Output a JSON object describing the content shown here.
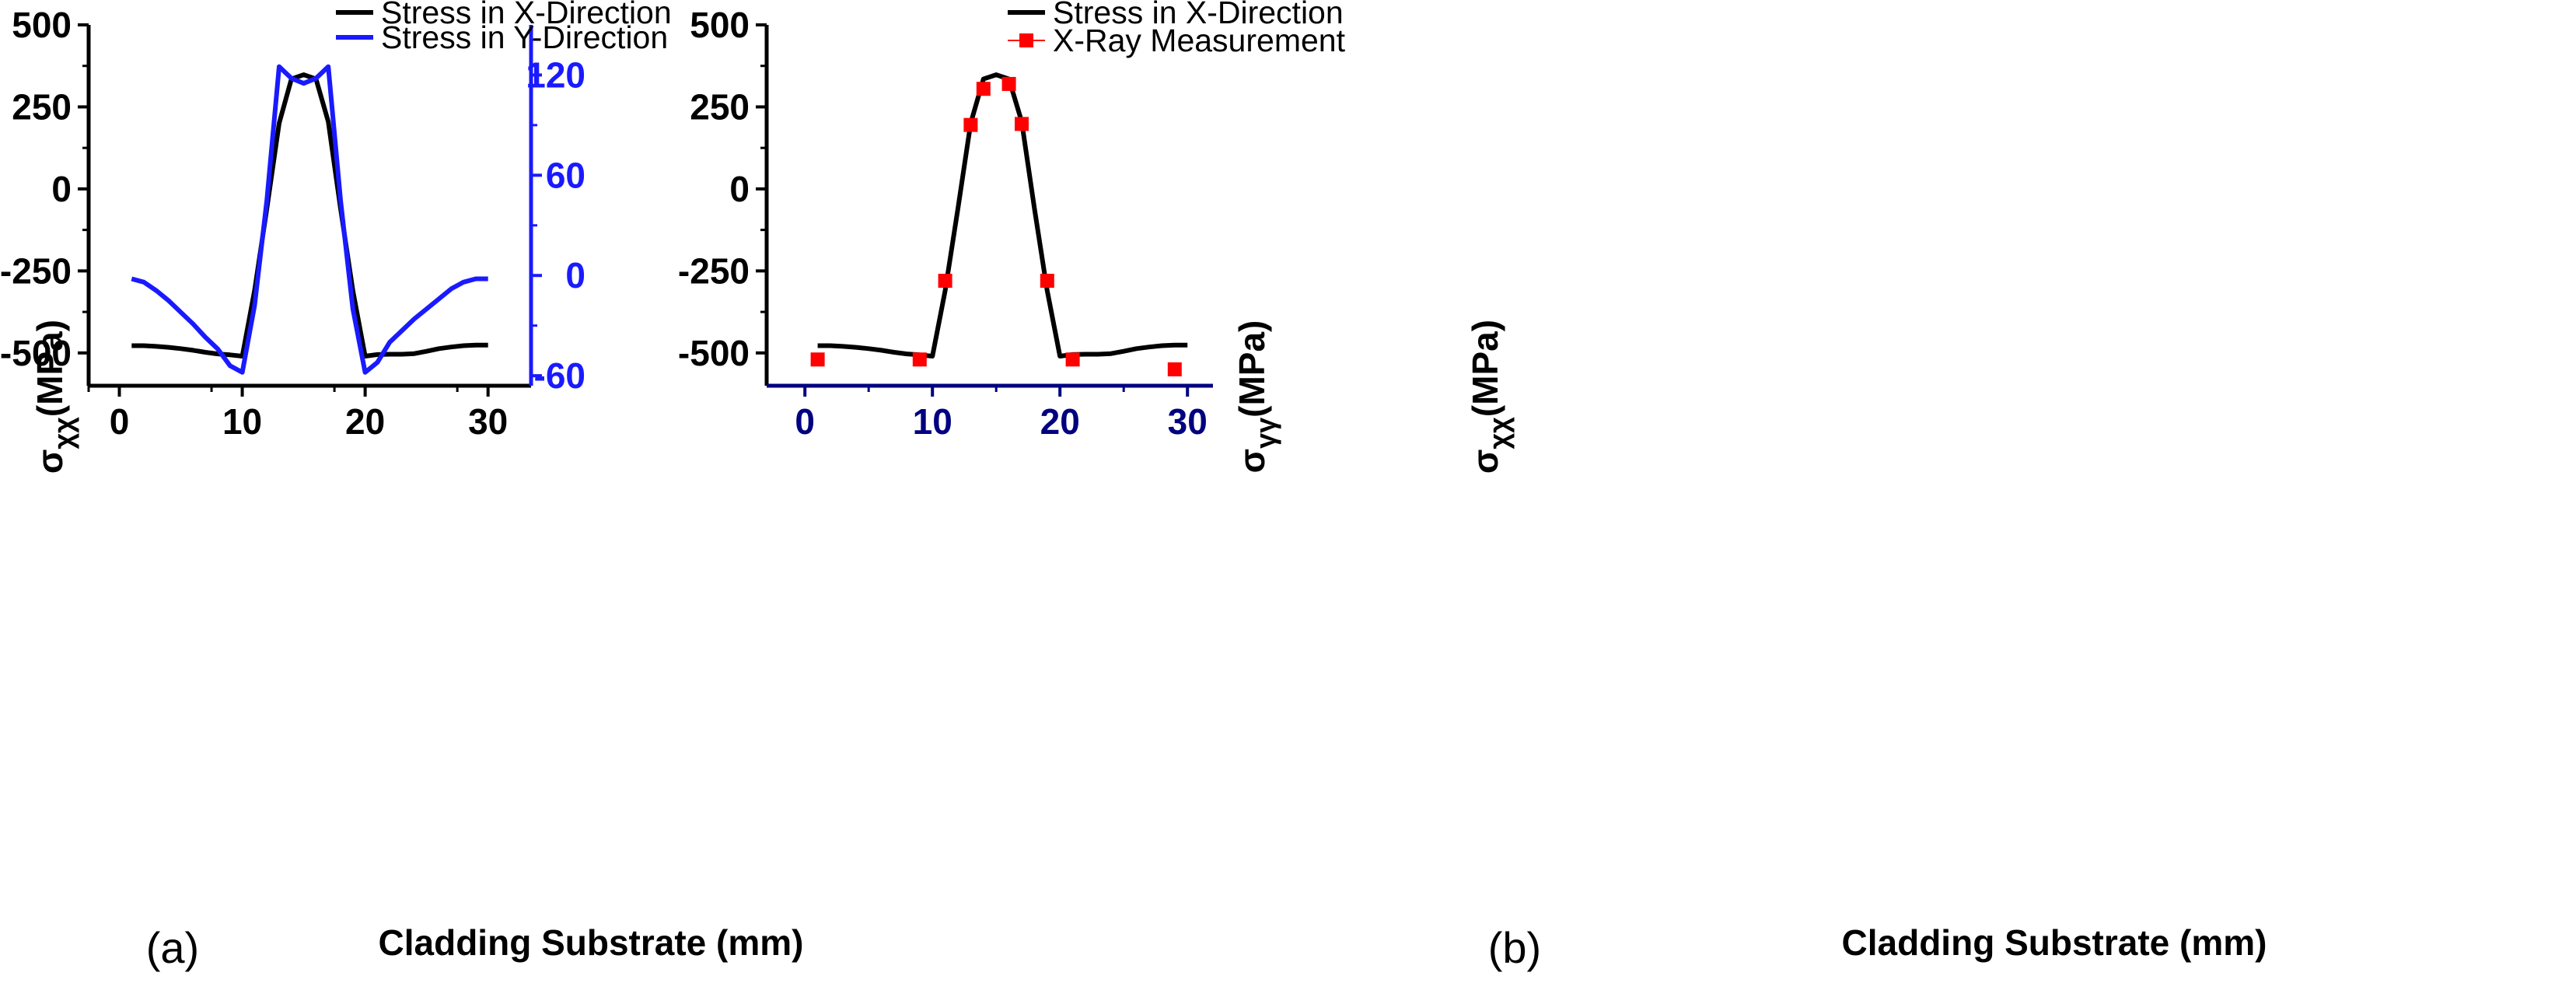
{
  "colors": {
    "black": "#000000",
    "blue": "#1a1aff",
    "navy": "#000080",
    "red": "#ff0000"
  },
  "chart_data": [
    {
      "panel": "(a)",
      "type": "line",
      "xlabel": "Cladding Substrate (mm)",
      "ylabel_sigma": "σ",
      "ylabel_sub": "χχ",
      "ylabel_unit": "(MPa)",
      "y2label_sigma": "σ",
      "y2label_sub": "γγ",
      "y2label_unit": "(MPa)",
      "xlim": [
        -2.5,
        33.5
      ],
      "ylim": [
        -600,
        500
      ],
      "y2lim": [
        -66,
        150
      ],
      "xticks": [
        0,
        10,
        20,
        30
      ],
      "yticks": [
        -500,
        -250,
        0,
        250,
        500
      ],
      "y2ticks": [
        -60,
        0,
        60,
        120
      ],
      "grid": false,
      "legend": "top-right",
      "series": [
        {
          "name": "Stress in X-Direction",
          "axis": "left",
          "color": "#000000",
          "x": [
            1,
            2,
            3,
            4,
            5,
            6,
            7,
            8,
            9,
            10,
            11,
            12,
            13,
            14,
            15,
            16,
            17,
            18,
            19,
            20,
            21,
            22,
            23,
            24,
            25,
            26,
            27,
            28,
            29,
            30
          ],
          "y": [
            -478,
            -478,
            -480,
            -483,
            -487,
            -492,
            -498,
            -503,
            -506,
            -510,
            -310,
            -60,
            200,
            335,
            348,
            335,
            205,
            -60,
            -310,
            -510,
            -505,
            -504,
            -504,
            -502,
            -495,
            -487,
            -482,
            -478,
            -476,
            -476
          ]
        },
        {
          "name": "Stress in Y-Direction",
          "axis": "right",
          "color": "#1a1aff",
          "x": [
            1,
            2,
            3,
            4,
            5,
            6,
            7,
            8,
            9,
            10,
            11,
            12,
            13,
            14,
            15,
            16,
            17,
            18,
            19,
            20,
            21,
            22,
            23,
            24,
            25,
            26,
            27,
            28,
            29,
            30
          ],
          "y": [
            -2,
            -4,
            -9,
            -15,
            -22,
            -29,
            -37,
            -44,
            -54,
            -58,
            -18,
            45,
            125,
            118,
            115,
            118,
            125,
            45,
            -20,
            -58,
            -52,
            -40,
            -33,
            -26,
            -20,
            -14,
            -8,
            -4,
            -2,
            -2
          ]
        }
      ]
    },
    {
      "panel": "(b)",
      "type": "line",
      "xlabel": "Cladding Substrate (mm)",
      "ylabel_sigma": "σ",
      "ylabel_sub": "χχ",
      "ylabel_unit": "(MPa)",
      "xlim": [
        -3,
        32
      ],
      "ylim": [
        -600,
        500
      ],
      "xticks": [
        0,
        10,
        20,
        30
      ],
      "yticks": [
        -500,
        -250,
        0,
        250,
        500
      ],
      "grid": false,
      "legend": "top-right",
      "series": [
        {
          "name": "Stress in X-Direction",
          "type": "line",
          "color": "#000000",
          "x": [
            1,
            2,
            3,
            4,
            5,
            6,
            7,
            8,
            9,
            10,
            11,
            12,
            13,
            14,
            15,
            16,
            17,
            18,
            19,
            20,
            21,
            22,
            23,
            24,
            25,
            26,
            27,
            28,
            29,
            30
          ],
          "y": [
            -478,
            -478,
            -480,
            -483,
            -487,
            -492,
            -498,
            -503,
            -506,
            -510,
            -310,
            -60,
            200,
            335,
            348,
            335,
            205,
            -60,
            -310,
            -510,
            -505,
            -504,
            -504,
            -502,
            -495,
            -487,
            -482,
            -478,
            -476,
            -476
          ]
        },
        {
          "name": "X-Ray Measurement",
          "type": "scatter",
          "color": "#ff0000",
          "x": [
            1,
            9,
            11,
            13,
            14,
            16,
            17,
            19,
            21,
            29
          ],
          "y": [
            -520,
            -520,
            -280,
            195,
            305,
            320,
            198,
            -280,
            -520,
            -550
          ]
        }
      ]
    }
  ]
}
